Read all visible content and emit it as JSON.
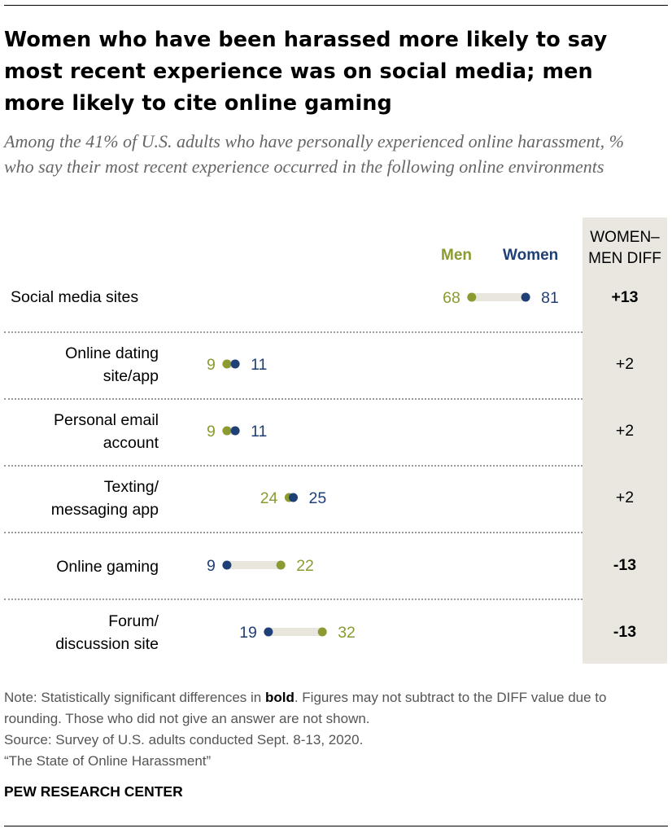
{
  "title": "Women who have been harassed more likely to say most recent experience was on social media; men more likely to cite online gaming",
  "subtitle": "Among the 41% of U.S. adults who have personally experienced online harassment, % who say their most recent experience occurred in the following online environments",
  "legend": {
    "men": "Men",
    "women": "Women"
  },
  "diff_header": "WOMEN–MEN DIFF",
  "colors": {
    "men": "#8c9a32",
    "women": "#1f3f77",
    "bar": "#e8e6dd",
    "diff_band": "#e9e7e0"
  },
  "chart_data": {
    "type": "dot",
    "categories": [
      "Social media sites",
      "Online dating site/app",
      "Personal email account",
      "Texting/ messaging app",
      "Online gaming",
      "Forum/ discussion site"
    ],
    "series": [
      {
        "name": "Men",
        "values": [
          68,
          9,
          9,
          24,
          22,
          32
        ]
      },
      {
        "name": "Women",
        "values": [
          81,
          11,
          11,
          25,
          9,
          19
        ]
      }
    ],
    "diff": [
      "+13",
      "+2",
      "+2",
      "+2",
      "-13",
      "-13"
    ],
    "diff_significant": [
      true,
      false,
      false,
      false,
      true,
      true
    ]
  },
  "rows": [
    {
      "label_line1": "Social media sites",
      "label_line2": "",
      "diff": "+13"
    },
    {
      "label_line1": "Online dating",
      "label_line2": "site/app",
      "diff": "+2"
    },
    {
      "label_line1": "Personal email",
      "label_line2": "account",
      "diff": "+2"
    },
    {
      "label_line1": "Texting/",
      "label_line2": "messaging app",
      "diff": "+2"
    },
    {
      "label_line1": "Online gaming",
      "label_line2": "",
      "diff": "-13"
    },
    {
      "label_line1": "Forum/",
      "label_line2": "discussion site",
      "diff": "-13"
    }
  ],
  "note": {
    "prefix": "Note: Statistically significant differences in ",
    "bold": "bold",
    "suffix": ". Figures may not subtract to the DIFF value due to rounding. Those who did not give an answer are not shown.",
    "source": "Source: Survey of U.S. adults conducted Sept. 8-13, 2020.",
    "report": "“The State of Online Harassment”"
  },
  "brand": "PEW RESEARCH CENTER"
}
